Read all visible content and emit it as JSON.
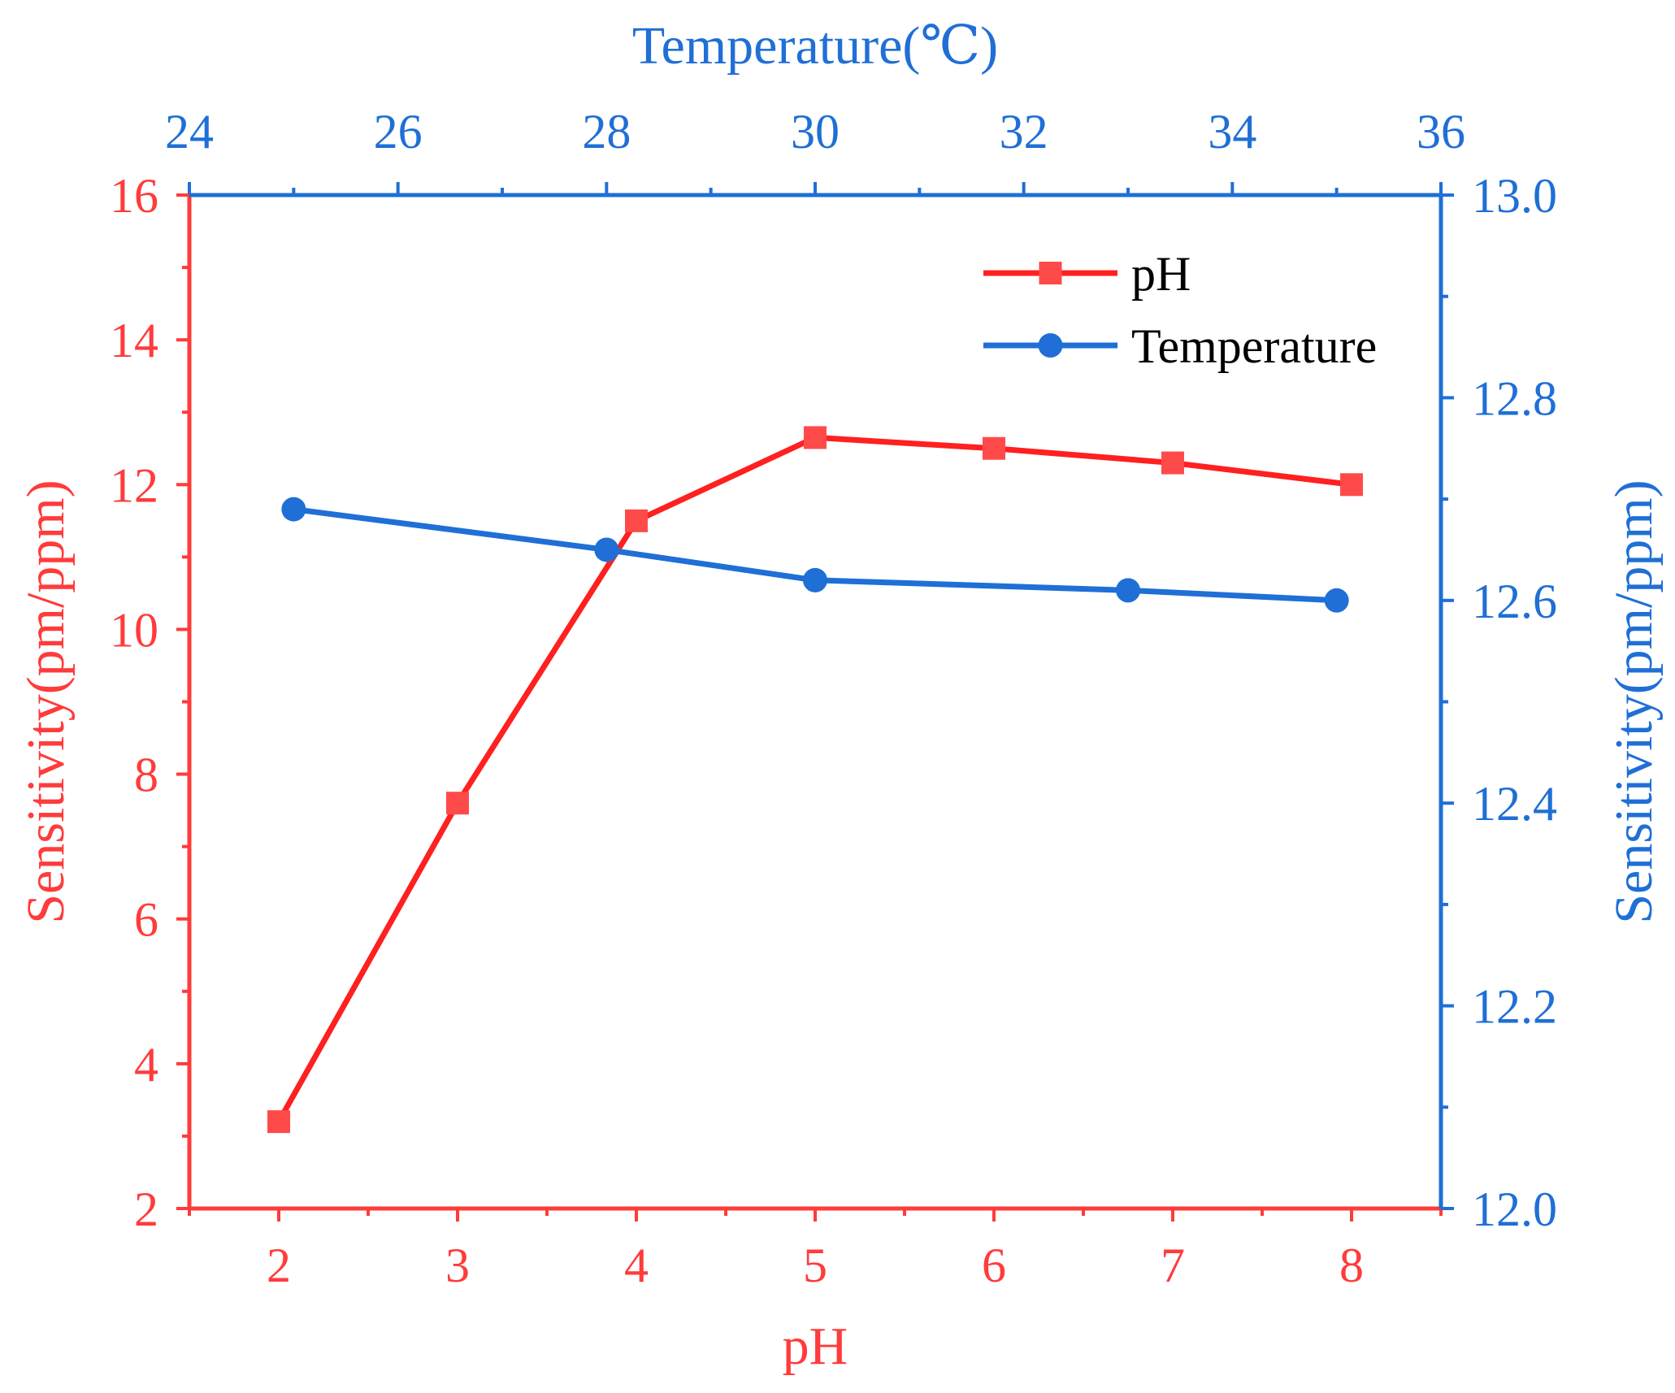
{
  "chart_data": {
    "type": "line",
    "dual_axis": true,
    "colors": {
      "ph": "#ff2020",
      "ph_axis": "#ff3b3b",
      "temperature": "#1f6fd6"
    },
    "axes": {
      "bottom": {
        "label": "pH",
        "range": [
          1.5,
          8.5
        ],
        "ticks": [
          "2",
          "3",
          "4",
          "5",
          "6",
          "7",
          "8"
        ],
        "tick_values": [
          2,
          3,
          4,
          5,
          6,
          7,
          8
        ]
      },
      "top": {
        "label": "Temperature(℃)",
        "range": [
          24,
          36
        ],
        "ticks": [
          "24",
          "26",
          "28",
          "30",
          "32",
          "34",
          "36"
        ],
        "tick_values": [
          24,
          26,
          28,
          30,
          32,
          34,
          36
        ]
      },
      "left": {
        "label": "Sensitivity(pm/ppm)",
        "range": [
          2,
          16
        ],
        "ticks": [
          "2",
          "4",
          "6",
          "8",
          "10",
          "12",
          "14",
          "16"
        ],
        "tick_values": [
          2,
          4,
          6,
          8,
          10,
          12,
          14,
          16
        ]
      },
      "right": {
        "label": "Sensitivity(pm/ppm)",
        "range": [
          12.0,
          13.0
        ],
        "ticks": [
          "12.0",
          "12.2",
          "12.4",
          "12.6",
          "12.8",
          "13.0"
        ],
        "tick_values": [
          12.0,
          12.2,
          12.4,
          12.6,
          12.8,
          13.0
        ]
      }
    },
    "series": [
      {
        "name": "pH",
        "marker": "square",
        "x_axis": "bottom",
        "y_axis": "left",
        "x": [
          2,
          3,
          4,
          5,
          6,
          7,
          8
        ],
        "values": [
          3.2,
          7.6,
          11.5,
          12.65,
          12.5,
          12.3,
          12.0
        ]
      },
      {
        "name": "Temperature",
        "marker": "circle",
        "x_axis": "top",
        "y_axis": "right",
        "x": [
          25,
          28,
          30,
          33,
          35
        ],
        "values": [
          12.69,
          12.65,
          12.62,
          12.61,
          12.6
        ]
      }
    ],
    "legend": {
      "position": "top-right",
      "entries": [
        "pH",
        "Temperature"
      ]
    },
    "grid": false
  }
}
